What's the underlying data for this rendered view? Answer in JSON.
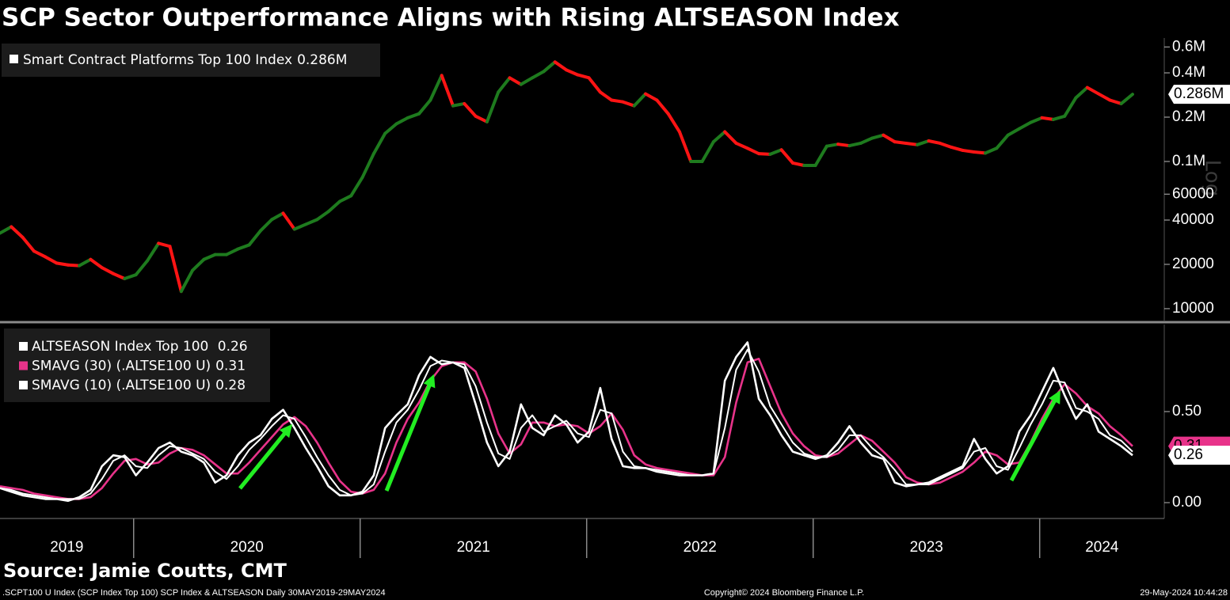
{
  "chart_data": {
    "type": "line",
    "title": "SCP Sector Outperformance Aligns with Rising ALTSEASON Index",
    "source": "Source: Jamie Coutts, CMT",
    "footer": {
      "left": ".SCPT100 U Index (SCP Index Top 100) SCP Index & ALTSEASON  Daily 30MAY2019-29MAY2024",
      "center": "Copyright© 2024 Bloomberg Finance L.P.",
      "right": "29-May-2024 10:44:28"
    },
    "x": [
      2019.41,
      2019.46,
      2019.51,
      2019.56,
      2019.61,
      2019.66,
      2019.71,
      2019.76,
      2019.81,
      2019.86,
      2019.91,
      2019.96,
      2020.01,
      2020.06,
      2020.11,
      2020.16,
      2020.21,
      2020.26,
      2020.31,
      2020.36,
      2020.41,
      2020.46,
      2020.51,
      2020.56,
      2020.61,
      2020.66,
      2020.71,
      2020.76,
      2020.81,
      2020.86,
      2020.91,
      2020.96,
      2021.01,
      2021.06,
      2021.11,
      2021.16,
      2021.21,
      2021.26,
      2021.31,
      2021.36,
      2021.41,
      2021.46,
      2021.51,
      2021.56,
      2021.61,
      2021.66,
      2021.71,
      2021.76,
      2021.81,
      2021.86,
      2021.91,
      2021.96,
      2022.01,
      2022.06,
      2022.11,
      2022.16,
      2022.21,
      2022.26,
      2022.31,
      2022.36,
      2022.41,
      2022.46,
      2022.51,
      2022.56,
      2022.61,
      2022.66,
      2022.71,
      2022.76,
      2022.81,
      2022.86,
      2022.91,
      2022.96,
      2023.01,
      2023.06,
      2023.11,
      2023.16,
      2023.21,
      2023.26,
      2023.31,
      2023.36,
      2023.41,
      2023.46,
      2023.51,
      2023.56,
      2023.61,
      2023.66,
      2023.71,
      2023.76,
      2023.81,
      2023.86,
      2023.91,
      2023.96,
      2024.01,
      2024.06,
      2024.11,
      2024.16,
      2024.21,
      2024.26,
      2024.31,
      2024.36,
      2024.41
    ],
    "xlim": [
      2019.41,
      2024.55
    ],
    "xticks": [
      2020,
      2021,
      2022,
      2023,
      2024
    ],
    "year_labels": [
      "2019",
      "2020",
      "2021",
      "2022",
      "2023",
      "2024"
    ],
    "panels": [
      {
        "log": true,
        "scale_label": "Log",
        "grid": false,
        "ylim": [
          8300,
          690000
        ],
        "yticks": [
          {
            "value": 600000,
            "label": "0.6M"
          },
          {
            "value": 400000,
            "label": "0.4M"
          },
          {
            "value": 200000,
            "label": "0.2M"
          },
          {
            "value": 100000,
            "label": "0.1M"
          },
          60000,
          40000,
          20000,
          10000
        ],
        "series": [
          {
            "name": "Smart Contract Platforms Top 100 Index",
            "color": "#ffffff",
            "up_color": "#1e7b1e",
            "down_color": "#ff1414",
            "last_label": "0.286M",
            "values": [
              32600,
              36000,
              30500,
              24600,
              22500,
              20400,
              19800,
              19600,
              21600,
              19000,
              17300,
              16000,
              17000,
              21100,
              27800,
              26500,
              13100,
              18200,
              21600,
              23300,
              23300,
              25400,
              27100,
              33800,
              40300,
              44500,
              34700,
              37400,
              40300,
              45700,
              53500,
              58500,
              78000,
              113000,
              155000,
              180000,
              198000,
              211000,
              261000,
              384000,
              239000,
              247000,
              203000,
              186000,
              296000,
              370000,
              334000,
              370000,
              408000,
              474000,
              419000,
              388000,
              370000,
              296000,
              261000,
              254000,
              239000,
              288000,
              261000,
              211000,
              159000,
              100000,
              100000,
              136000,
              159000,
              133000,
              123000,
              113000,
              112000,
              120000,
              97600,
              94000,
              94000,
              127000,
              131000,
              128000,
              133000,
              144000,
              151000,
              136000,
              133000,
              130000,
              138000,
              133000,
              125000,
              119000,
              116000,
              114000,
              123000,
              151000,
              167000,
              184000,
              198000,
              193000,
              203000,
              271000,
              318000,
              288000,
              261000,
              247000,
              286000
            ]
          }
        ]
      },
      {
        "log": false,
        "grid": false,
        "ylim": [
          -0.087,
          0.978
        ],
        "yticks": [
          {
            "value": 0.5,
            "label": "0.50"
          },
          {
            "value": 0,
            "label": "0.00"
          }
        ],
        "series": [
          {
            "name": "ALTSEASON Index Top 100 ",
            "color": "#ffffff",
            "values": [
              0.08,
              0.06,
              0.04,
              0.03,
              0.02,
              0.02,
              0.01,
              0.03,
              0.07,
              0.2,
              0.26,
              0.25,
              0.15,
              0.22,
              0.3,
              0.33,
              0.28,
              0.26,
              0.22,
              0.11,
              0.15,
              0.26,
              0.33,
              0.37,
              0.46,
              0.51,
              0.41,
              0.3,
              0.2,
              0.09,
              0.04,
              0.04,
              0.06,
              0.15,
              0.41,
              0.48,
              0.54,
              0.7,
              0.8,
              0.76,
              0.77,
              0.74,
              0.54,
              0.33,
              0.2,
              0.28,
              0.54,
              0.41,
              0.37,
              0.48,
              0.43,
              0.33,
              0.39,
              0.63,
              0.35,
              0.2,
              0.19,
              0.19,
              0.17,
              0.16,
              0.15,
              0.15,
              0.15,
              0.16,
              0.67,
              0.8,
              0.88,
              0.57,
              0.48,
              0.37,
              0.28,
              0.26,
              0.24,
              0.26,
              0.33,
              0.42,
              0.33,
              0.26,
              0.24,
              0.11,
              0.09,
              0.1,
              0.11,
              0.14,
              0.17,
              0.2,
              0.35,
              0.24,
              0.16,
              0.2,
              0.39,
              0.48,
              0.61,
              0.74,
              0.59,
              0.46,
              0.54,
              0.39,
              0.35,
              0.31,
              0.26
            ]
          },
          {
            "name": "SMAVG (30) (.ALTSE100 U)",
            "color": "#e8338a",
            "values": [
              0.09,
              0.08,
              0.07,
              0.05,
              0.04,
              0.03,
              0.02,
              0.02,
              0.03,
              0.08,
              0.16,
              0.23,
              0.24,
              0.21,
              0.22,
              0.27,
              0.3,
              0.29,
              0.26,
              0.21,
              0.16,
              0.16,
              0.22,
              0.29,
              0.36,
              0.43,
              0.47,
              0.42,
              0.33,
              0.22,
              0.12,
              0.06,
              0.05,
              0.07,
              0.16,
              0.33,
              0.46,
              0.55,
              0.67,
              0.75,
              0.77,
              0.77,
              0.72,
              0.57,
              0.38,
              0.27,
              0.32,
              0.44,
              0.44,
              0.42,
              0.43,
              0.42,
              0.38,
              0.42,
              0.49,
              0.4,
              0.26,
              0.21,
              0.19,
              0.18,
              0.17,
              0.16,
              0.15,
              0.15,
              0.25,
              0.55,
              0.77,
              0.79,
              0.64,
              0.49,
              0.38,
              0.31,
              0.26,
              0.25,
              0.27,
              0.32,
              0.37,
              0.34,
              0.28,
              0.22,
              0.14,
              0.11,
              0.1,
              0.11,
              0.14,
              0.17,
              0.22,
              0.28,
              0.26,
              0.21,
              0.22,
              0.33,
              0.46,
              0.57,
              0.65,
              0.6,
              0.53,
              0.49,
              0.42,
              0.37,
              0.31
            ]
          },
          {
            "name": "SMAVG (10) (.ALTSE100 U)",
            "color": "#ffffff",
            "values": [
              0.08,
              0.07,
              0.05,
              0.04,
              0.03,
              0.02,
              0.02,
              0.02,
              0.05,
              0.13,
              0.23,
              0.26,
              0.2,
              0.19,
              0.26,
              0.31,
              0.3,
              0.27,
              0.24,
              0.17,
              0.13,
              0.2,
              0.29,
              0.35,
              0.42,
              0.48,
              0.46,
              0.36,
              0.25,
              0.15,
              0.07,
              0.04,
              0.05,
              0.1,
              0.28,
              0.44,
              0.51,
              0.62,
              0.75,
              0.78,
              0.77,
              0.76,
              0.64,
              0.44,
              0.27,
              0.24,
              0.41,
              0.48,
              0.39,
              0.42,
              0.45,
              0.38,
              0.36,
              0.51,
              0.49,
              0.28,
              0.2,
              0.19,
              0.18,
              0.17,
              0.16,
              0.15,
              0.15,
              0.16,
              0.41,
              0.73,
              0.84,
              0.72,
              0.53,
              0.43,
              0.33,
              0.27,
              0.25,
              0.25,
              0.29,
              0.37,
              0.37,
              0.3,
              0.25,
              0.18,
              0.1,
              0.1,
              0.1,
              0.13,
              0.16,
              0.19,
              0.28,
              0.3,
              0.2,
              0.18,
              0.3,
              0.43,
              0.54,
              0.67,
              0.66,
              0.52,
              0.5,
              0.46,
              0.37,
              0.34,
              0.28
            ]
          }
        ]
      }
    ]
  }
}
